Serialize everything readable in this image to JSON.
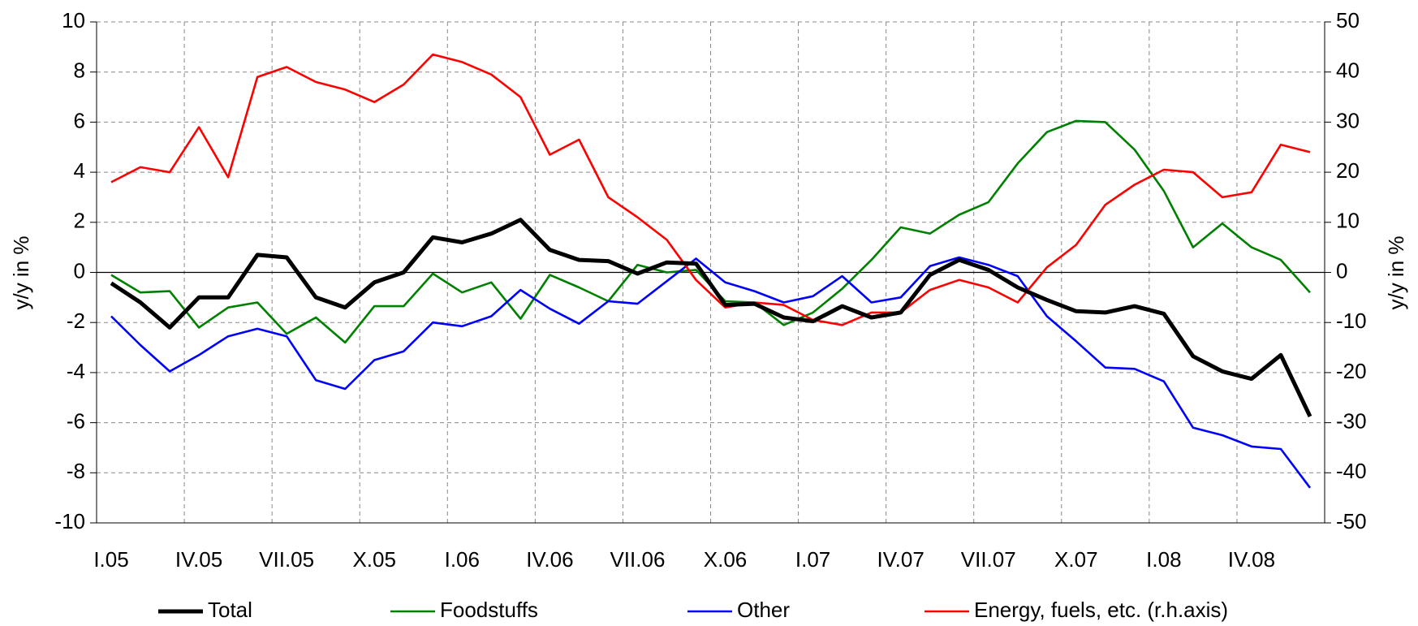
{
  "chart_data": {
    "type": "line",
    "ylabel": "y/y in %",
    "y2label": "y/y in %",
    "categories": [
      "I.05",
      null,
      null,
      "IV.05",
      null,
      null,
      "VII.05",
      null,
      null,
      "X.05",
      null,
      null,
      "I.06",
      null,
      null,
      "IV.06",
      null,
      null,
      "VII.06",
      null,
      null,
      "X.06",
      null,
      null,
      "I.07",
      null,
      null,
      "IV.07",
      null,
      null,
      "VII.07",
      null,
      null,
      "X.07",
      null,
      null,
      "I.08",
      null,
      null,
      "IV.08",
      null,
      null
    ],
    "ylim": [
      -10,
      10
    ],
    "yticks": [
      -10,
      -8,
      -6,
      -4,
      -2,
      0,
      2,
      4,
      6,
      8,
      10
    ],
    "y2lim": [
      -50,
      50
    ],
    "y2ticks": [
      -50,
      -40,
      -30,
      -20,
      -10,
      0,
      10,
      20,
      30,
      40,
      50
    ],
    "grid": true,
    "series": [
      {
        "name": "Total",
        "color": "#000000",
        "values": [
          -0.43,
          -1.2,
          -2.2,
          -1.0,
          -1.0,
          0.7,
          0.6,
          -1.0,
          -1.4,
          -0.4,
          0.0,
          1.4,
          1.2,
          1.55,
          2.1,
          0.9,
          0.5,
          0.45,
          -0.05,
          0.4,
          0.35,
          -1.3,
          -1.25,
          -1.8,
          -1.95,
          -1.35,
          -1.8,
          -1.6,
          -0.1,
          0.5,
          0.1,
          -0.6,
          -1.1,
          -1.55,
          -1.6,
          -1.35,
          -1.65,
          -3.35,
          -3.95,
          -4.25,
          -3.3,
          -5.75
        ]
      },
      {
        "name": "Foodstuffs",
        "color": "#008000",
        "values": [
          -0.1,
          -0.8,
          -0.75,
          -2.2,
          -1.4,
          -1.2,
          -2.45,
          -1.8,
          -2.8,
          -1.35,
          -1.35,
          -0.05,
          -0.8,
          -0.4,
          -1.85,
          -0.1,
          -0.6,
          -1.15,
          0.3,
          0.0,
          0.1,
          -1.15,
          -1.2,
          -2.1,
          -1.6,
          -0.65,
          0.5,
          1.8,
          1.55,
          2.3,
          2.8,
          4.35,
          5.6,
          6.05,
          6.0,
          4.9,
          3.25,
          1.0,
          1.95,
          1.0,
          0.5,
          -0.8
        ]
      },
      {
        "name": "Other",
        "color": "#0000ff",
        "values": [
          -1.75,
          -2.9,
          -3.95,
          -3.3,
          -2.55,
          -2.25,
          -2.55,
          -4.3,
          -4.65,
          -3.5,
          -3.15,
          -2.0,
          -2.15,
          -1.75,
          -0.7,
          -1.45,
          -2.05,
          -1.15,
          -1.25,
          -0.35,
          0.55,
          -0.4,
          -0.75,
          -1.2,
          -0.95,
          -0.15,
          -1.2,
          -1.0,
          0.25,
          0.6,
          0.3,
          -0.15,
          -1.75,
          -2.75,
          -3.8,
          -3.85,
          -4.35,
          -6.2,
          -6.5,
          -6.95,
          -7.05,
          -8.6
        ]
      },
      {
        "name": "Energy, fuels, etc. (r.h.axis)",
        "color": "#ff0000",
        "axis": "y2",
        "values": [
          18,
          21,
          20,
          29,
          19,
          39,
          41,
          38,
          36.5,
          34,
          37.5,
          43.5,
          42,
          39.5,
          35,
          23.5,
          26.5,
          15,
          11,
          6.5,
          -1.5,
          -7,
          -6,
          -6.5,
          -9.5,
          -10.5,
          -8,
          -8,
          -3.5,
          -1.5,
          -3,
          -6,
          1,
          5.5,
          13.5,
          17.5,
          20.5,
          20,
          15,
          16,
          25.5,
          24
        ]
      }
    ]
  }
}
